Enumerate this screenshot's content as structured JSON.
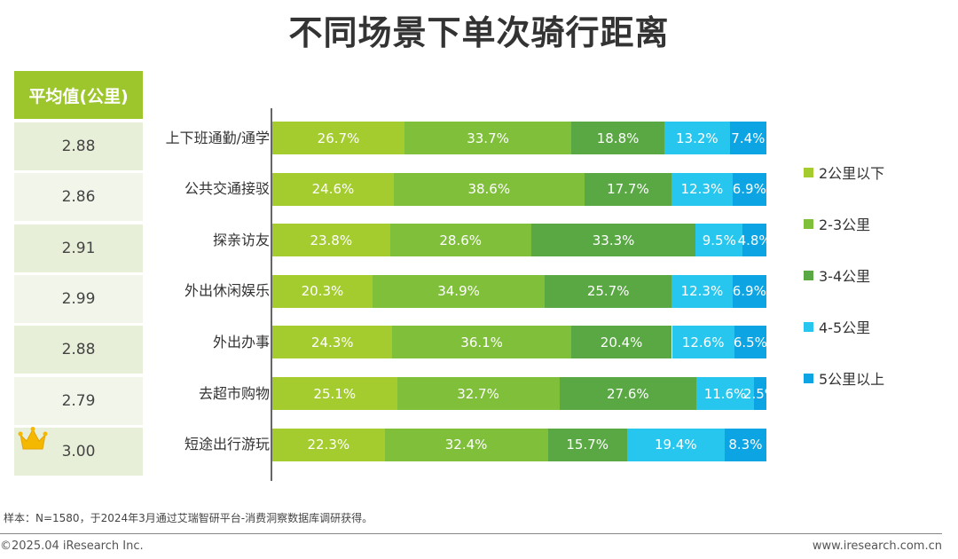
{
  "title": "不同场景下单次骑行距离",
  "avg_header": "平均值(公里)",
  "averages": [
    "2.88",
    "2.86",
    "2.91",
    "2.99",
    "2.88",
    "2.79",
    "3.00"
  ],
  "crown_icon": "crown-icon",
  "note": "样本：N=1580，于2024年3月通过艾瑞智研平台-消费洞察数据库调研获得。",
  "footer": {
    "left": "©2025.04 iResearch Inc.",
    "right": "www.iresearch.com.cn"
  },
  "colors": [
    "#a4cc2f",
    "#7fbf3a",
    "#5aa844",
    "#27c6ee",
    "#0ca4e2"
  ],
  "chart_data": {
    "type": "bar",
    "orientation": "horizontal",
    "stacked": true,
    "title": "不同场景下单次骑行距离",
    "categories": [
      "上下班通勤/通学",
      "公共交通接驳",
      "探亲访友",
      "外出休闲娱乐",
      "外出办事",
      "去超市购物",
      "短途出行游玩"
    ],
    "series": [
      {
        "name": "2公里以下",
        "values": [
          26.7,
          24.6,
          23.8,
          20.3,
          24.3,
          25.1,
          22.3
        ],
        "labels": [
          "26.7%",
          "24.6%",
          "23.8%",
          "20.3%",
          "24.3%",
          "25.1%",
          "22.3%"
        ]
      },
      {
        "name": "2-3公里",
        "values": [
          33.7,
          38.6,
          28.6,
          34.9,
          36.1,
          32.7,
          32.4
        ],
        "labels": [
          "33.7%",
          "38.6%",
          "28.6%",
          "34.9%",
          "36.1%",
          "32.7%",
          "32.4%"
        ]
      },
      {
        "name": "3-4公里",
        "values": [
          18.8,
          17.7,
          33.3,
          25.7,
          20.4,
          27.6,
          15.7
        ],
        "labels": [
          "18.8%",
          "17.7%",
          "33.3%",
          "25.7%",
          "20.4%",
          "27.6%",
          "15.7%"
        ]
      },
      {
        "name": "4-5公里",
        "values": [
          13.2,
          12.3,
          9.5,
          12.3,
          12.6,
          11.6,
          19.4
        ],
        "labels": [
          "13.2%",
          "12.3%",
          "9.5%",
          "12.3%",
          "12.6%",
          "11.6%",
          "19.4%"
        ]
      },
      {
        "name": "5公里以上",
        "values": [
          7.4,
          6.9,
          4.8,
          6.9,
          6.5,
          2.5,
          8.3
        ],
        "labels": [
          "7.4%",
          "6.9%",
          "4.8%",
          "6.9%",
          "6.5%",
          "2.5%",
          "8.3%"
        ]
      }
    ],
    "xlim": [
      0,
      100
    ],
    "legend": "right"
  }
}
